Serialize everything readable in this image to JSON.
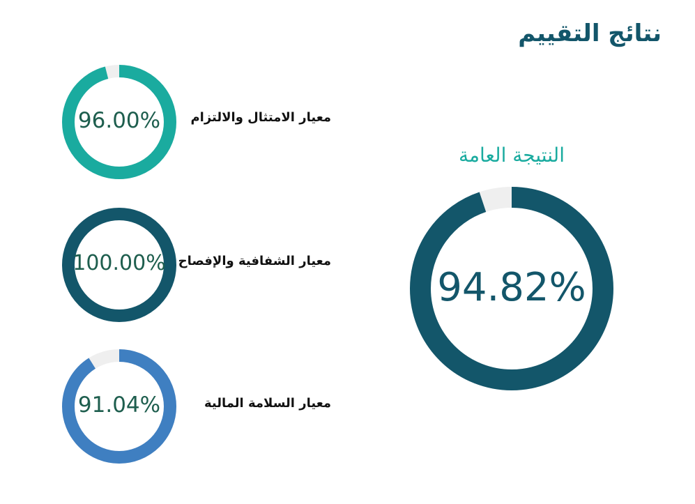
{
  "title": "نتائج التقييم",
  "chart_data": [
    {
      "type": "pie",
      "variant": "donut",
      "title": "النتيجة العامة",
      "value": 94.82,
      "label": "94.82%",
      "color": "#13566a",
      "track_color": "#efefef"
    },
    {
      "type": "pie",
      "variant": "donut",
      "title": "معيار الامتثال والالتزام",
      "value": 96.0,
      "label": "96.00%",
      "color": "#1aab9f",
      "track_color": "#efefef"
    },
    {
      "type": "pie",
      "variant": "donut",
      "title": "معيار الشفافية والإفصاح",
      "value": 100.0,
      "label": "100.00%",
      "color": "#13566a",
      "track_color": "#efefef"
    },
    {
      "type": "pie",
      "variant": "donut",
      "title": "معيار السلامة المالية",
      "value": 91.04,
      "label": "91.04%",
      "color": "#3f7fc1",
      "track_color": "#efefef"
    }
  ],
  "value_text_color": "#1e5e4e"
}
